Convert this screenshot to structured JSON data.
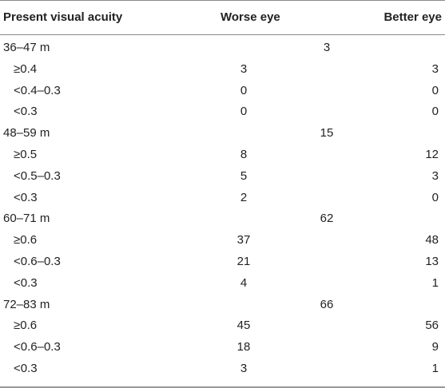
{
  "headers": {
    "acuity": "Present visual acuity",
    "worse": "Worse eye",
    "better": "Better eye"
  },
  "rows": [
    {
      "type": "group",
      "label": "36–47 m",
      "count": "3"
    },
    {
      "type": "item",
      "label": "≥0.4",
      "worse": "3",
      "better": "3"
    },
    {
      "type": "item",
      "label": "<0.4–0.3",
      "worse": "0",
      "better": "0"
    },
    {
      "type": "item",
      "label": "<0.3",
      "worse": "0",
      "better": "0"
    },
    {
      "type": "group",
      "label": "48–59 m",
      "count": "15"
    },
    {
      "type": "item",
      "label": "≥0.5",
      "worse": "8",
      "better": "12"
    },
    {
      "type": "item",
      "label": "<0.5–0.3",
      "worse": "5",
      "better": "3"
    },
    {
      "type": "item",
      "label": "<0.3",
      "worse": "2",
      "better": "0"
    },
    {
      "type": "group",
      "label": "60–71 m",
      "count": "62"
    },
    {
      "type": "item",
      "label": "≥0.6",
      "worse": "37",
      "better": "48"
    },
    {
      "type": "item",
      "label": "<0.6–0.3",
      "worse": "21",
      "better": "13"
    },
    {
      "type": "item",
      "label": "<0.3",
      "worse": "4",
      "better": "1"
    },
    {
      "type": "group",
      "label": "72–83 m",
      "count": "66"
    },
    {
      "type": "item",
      "label": "≥0.6",
      "worse": "45",
      "better": "56"
    },
    {
      "type": "item",
      "label": "<0.6–0.3",
      "worse": "18",
      "better": "9"
    },
    {
      "type": "item",
      "label": "<0.3",
      "worse": "3",
      "better": "1"
    }
  ]
}
